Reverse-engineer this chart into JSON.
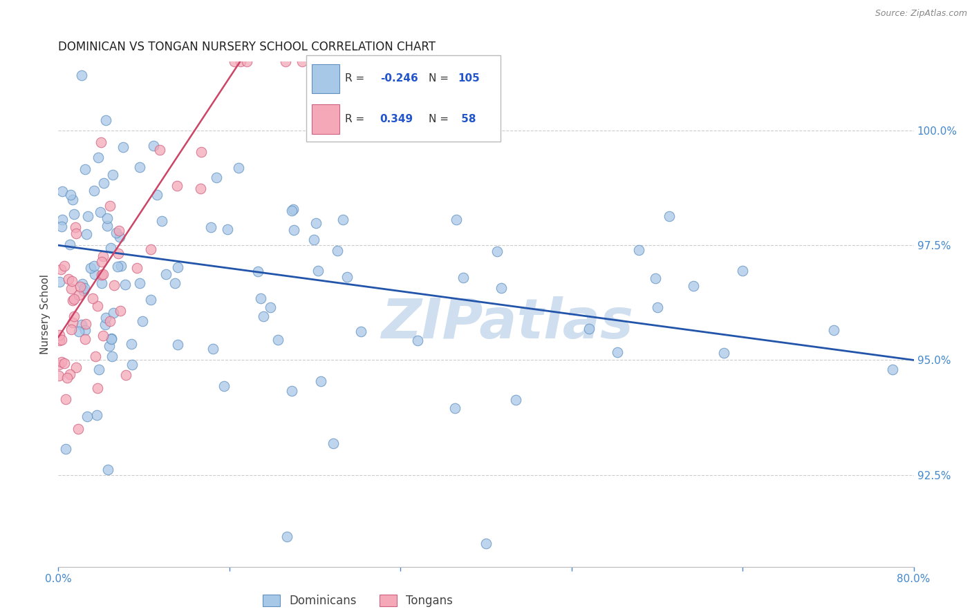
{
  "title": "DOMINICAN VS TONGAN NURSERY SCHOOL CORRELATION CHART",
  "source": "Source: ZipAtlas.com",
  "ylabel_left": "Nursery School",
  "right_yticks": [
    100.0,
    97.5,
    95.0,
    92.5
  ],
  "right_ytick_labels": [
    "100.0%",
    "97.5%",
    "95.0%",
    "92.5%"
  ],
  "xlim": [
    0.0,
    80.0
  ],
  "ylim": [
    90.5,
    101.5
  ],
  "blue_label": "Dominicans",
  "pink_label": "Tongans",
  "blue_R": -0.246,
  "blue_N": 105,
  "pink_R": 0.349,
  "pink_N": 58,
  "blue_color": "#a8c8e8",
  "pink_color": "#f4a8b8",
  "blue_edge_color": "#6090c0",
  "pink_edge_color": "#d06080",
  "blue_line_color": "#2255aa",
  "pink_line_color": "#cc4466",
  "watermark": "ZIPatlas",
  "watermark_color": "#d0dff0",
  "title_fontsize": 12,
  "axis_color": "#4488cc",
  "legend_text_color": "#333333",
  "legend_val_color": "#2255cc",
  "blue_trend_x": [
    0.0,
    80.0
  ],
  "blue_trend_y": [
    97.5,
    95.0
  ],
  "pink_trend_x": [
    0.0,
    17.0
  ],
  "pink_trend_y": [
    95.5,
    101.5
  ]
}
